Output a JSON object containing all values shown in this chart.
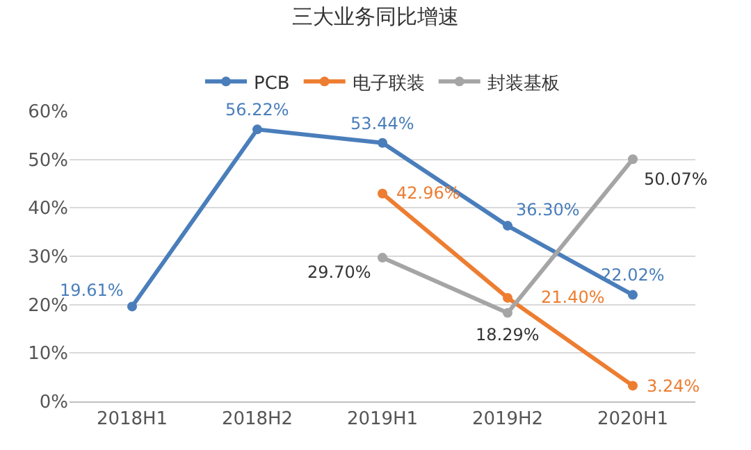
{
  "chart_data": {
    "type": "line",
    "title": "三大业务同比增速",
    "categories": [
      "2018H1",
      "2018H2",
      "2019H1",
      "2019H2",
      "2020H1"
    ],
    "series": [
      {
        "name": "PCB",
        "color": "#4a7ebb",
        "values": [
          19.61,
          56.22,
          53.44,
          36.3,
          22.02
        ],
        "value_labels": [
          "19.61%",
          "56.22%",
          "53.44%",
          "36.30%",
          "22.02%"
        ]
      },
      {
        "name": "电子联装",
        "color": "#ed7d31",
        "values": [
          null,
          null,
          42.96,
          21.4,
          3.24
        ],
        "value_labels": [
          null,
          null,
          "42.96%",
          "21.40%",
          "3.24%"
        ]
      },
      {
        "name": "封装基板",
        "color": "#a5a5a5",
        "values": [
          null,
          null,
          29.7,
          18.29,
          50.07
        ],
        "value_labels": [
          null,
          null,
          "29.70%",
          "18.29%",
          "50.07%"
        ]
      }
    ],
    "ylim": [
      0,
      60
    ],
    "yticks": [
      {
        "value": 0,
        "label": "0%"
      },
      {
        "value": 10,
        "label": "10%"
      },
      {
        "value": 20,
        "label": "20%"
      },
      {
        "value": 30,
        "label": "30%"
      },
      {
        "value": 40,
        "label": "40%"
      },
      {
        "value": 50,
        "label": "50%"
      },
      {
        "value": 60,
        "label": "60%"
      }
    ],
    "grid": "y",
    "legend": "top",
    "marker": "circle",
    "line_style": "solid"
  }
}
